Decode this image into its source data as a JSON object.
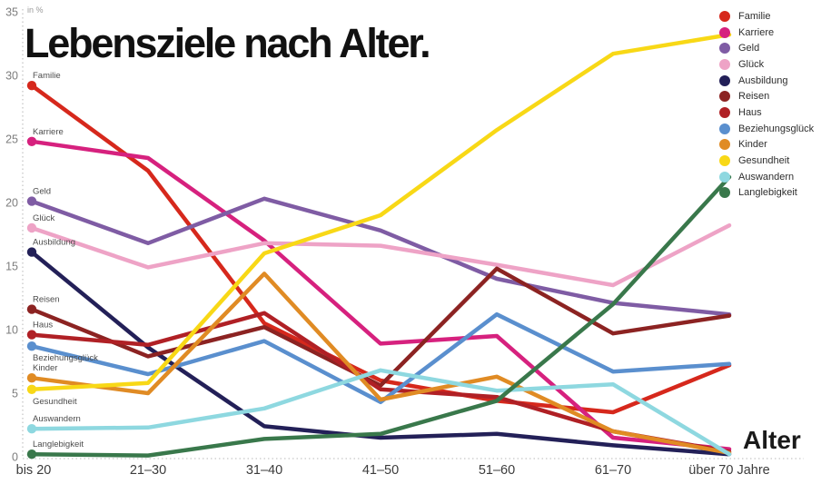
{
  "page": {
    "title": "Lebensziele nach Alter.",
    "unit_label": "in %",
    "x_axis_label": "Alter"
  },
  "chart_data": {
    "type": "line",
    "title": "Lebensziele nach Alter.",
    "unit": "in %",
    "xlabel": "Alter",
    "ylabel": "in %",
    "ylim": [
      0,
      35
    ],
    "y_ticks": [
      0,
      5,
      10,
      15,
      20,
      25,
      30,
      35
    ],
    "grid": "dotted axis lines only",
    "legend_position": "top-right",
    "categories": [
      "bis 20",
      "21–30",
      "31–40",
      "41–50",
      "51–60",
      "61–70",
      "über 70 Jahre"
    ],
    "series": [
      {
        "name": "Familie",
        "color": "#d6281c",
        "label_below": false,
        "values": [
          29.2,
          22.5,
          10.5,
          6.0,
          4.4,
          3.5,
          7.2
        ]
      },
      {
        "name": "Karriere",
        "color": "#d6217e",
        "label_below": false,
        "values": [
          24.8,
          23.5,
          17.0,
          8.9,
          9.5,
          1.5,
          0.6
        ]
      },
      {
        "name": "Geld",
        "color": "#7f5ca4",
        "label_below": false,
        "values": [
          20.1,
          16.8,
          20.3,
          17.8,
          14.0,
          12.1,
          11.2
        ]
      },
      {
        "name": "Glück",
        "color": "#eea3c6",
        "label_below": false,
        "values": [
          18.0,
          14.9,
          16.8,
          16.6,
          15.1,
          13.5,
          18.2
        ]
      },
      {
        "name": "Ausbildung",
        "color": "#232058",
        "label_below": false,
        "values": [
          16.1,
          8.6,
          2.4,
          1.5,
          1.8,
          0.9,
          0.2
        ]
      },
      {
        "name": "Reisen",
        "color": "#8c2322",
        "label_below": false,
        "values": [
          11.6,
          7.9,
          10.2,
          5.6,
          14.8,
          9.7,
          11.1
        ]
      },
      {
        "name": "Haus",
        "color": "#b02025",
        "label_below": false,
        "values": [
          9.6,
          8.8,
          11.3,
          5.3,
          4.7,
          2.0,
          0.4
        ]
      },
      {
        "name": "Beziehungsglück",
        "color": "#5a8fce",
        "label_below": true,
        "values": [
          8.7,
          6.5,
          9.1,
          4.3,
          11.2,
          6.7,
          7.3
        ]
      },
      {
        "name": "Kinder",
        "color": "#e08b24",
        "label_below": false,
        "values": [
          6.2,
          5.0,
          14.4,
          4.5,
          6.3,
          2.0,
          0.3
        ]
      },
      {
        "name": "Gesundheit",
        "color": "#f8d816",
        "label_below": true,
        "values": [
          5.3,
          5.8,
          16.0,
          19.0,
          25.7,
          31.7,
          33.2
        ]
      },
      {
        "name": "Auswandern",
        "color": "#8ed8e0",
        "label_below": false,
        "values": [
          2.2,
          2.3,
          3.8,
          6.8,
          5.2,
          5.7,
          0.2
        ]
      },
      {
        "name": "Langlebigkeit",
        "color": "#39784b",
        "label_below": false,
        "values": [
          0.2,
          0.1,
          1.4,
          1.8,
          4.4,
          12.0,
          22.0
        ]
      }
    ]
  }
}
